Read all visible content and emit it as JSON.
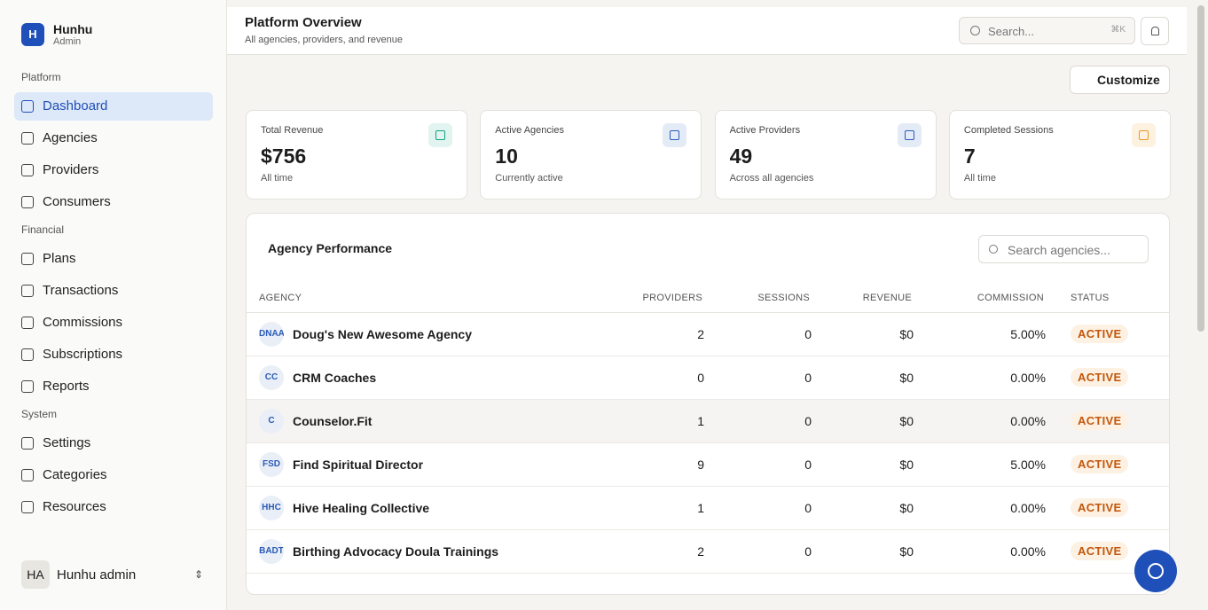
{
  "app": {
    "logo": "H",
    "name": "Hunhu",
    "role": "Admin"
  },
  "nav": [
    {
      "title": "Platform",
      "items": [
        "Dashboard",
        "Agencies",
        "Providers",
        "Consumers"
      ]
    },
    {
      "title": "Financial",
      "items": [
        "Plans",
        "Transactions",
        "Commissions",
        "Subscriptions",
        "Reports"
      ]
    },
    {
      "title": "System",
      "items": [
        "Settings",
        "Categories",
        "Resources"
      ]
    }
  ],
  "user": {
    "initials": "HA",
    "name": "Hunhu admin"
  },
  "header": {
    "title": "Platform Overview",
    "subtitle": "All agencies, providers, and revenue",
    "search": "Search...",
    "shortcut": "⌘K"
  },
  "customize": "Customize",
  "stats": [
    {
      "label": "Total Revenue",
      "value": "$756",
      "note": "All time"
    },
    {
      "label": "Active Agencies",
      "value": "10",
      "note": "Currently active"
    },
    {
      "label": "Active Providers",
      "value": "49",
      "note": "Across all agencies"
    },
    {
      "label": "Completed Sessions",
      "value": "7",
      "note": "All time"
    }
  ],
  "table": {
    "title": "Agency Performance",
    "search": "Search agencies...",
    "columns": [
      "AGENCY",
      "PROVIDERS",
      "SESSIONS",
      "REVENUE",
      "COMMISSION",
      "STATUS"
    ],
    "rows": [
      [
        "DNAA",
        "Doug's New Awesome Agency",
        2,
        0,
        "$0",
        "5.00%",
        "ACTIVE"
      ],
      [
        "CC",
        "CRM Coaches",
        0,
        0,
        "$0",
        "0.00%",
        "ACTIVE"
      ],
      [
        "C",
        "Counselor.Fit",
        1,
        0,
        "$0",
        "0.00%",
        "ACTIVE"
      ],
      [
        "FSD",
        "Find Spiritual Director",
        9,
        0,
        "$0",
        "5.00%",
        "ACTIVE"
      ],
      [
        "HHC",
        "Hive Healing Collective",
        1,
        0,
        "$0",
        "0.00%",
        "ACTIVE"
      ],
      [
        "BADT",
        "Birthing Advocacy Doula Trainings",
        2,
        0,
        "$0",
        "0.00%",
        "ACTIVE"
      ]
    ]
  }
}
